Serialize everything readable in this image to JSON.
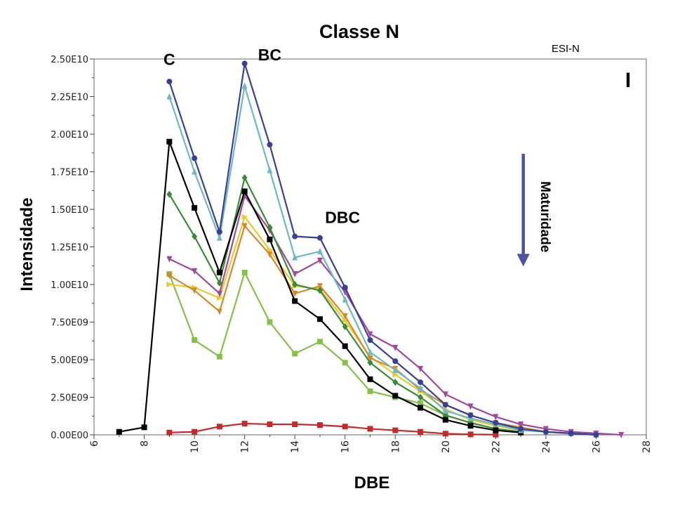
{
  "chart_data": {
    "type": "line",
    "title": "Classe N",
    "subtitle": "ESI-N",
    "panel_label": "I",
    "xlabel": "DBE",
    "ylabel": "Intensidade",
    "xlim": [
      6,
      28
    ],
    "ylim": [
      0,
      25000000000
    ],
    "grid": false,
    "x_ticks": [
      6,
      8,
      10,
      12,
      14,
      16,
      18,
      20,
      22,
      24,
      26,
      28
    ],
    "y_ticks": [
      0,
      2500000000,
      5000000000,
      7500000000,
      10000000000,
      12500000000,
      15000000000,
      17500000000,
      20000000000,
      22500000000,
      25000000000
    ],
    "y_tick_labels": [
      "0.00E00",
      "2.50E09",
      "5.00E09",
      "7.50E09",
      "1.00E10",
      "1.25E10",
      "1.50E10",
      "1.75E10",
      "2.00E10",
      "2.25E10",
      "2.50E10"
    ],
    "annotations": [
      {
        "text": "C",
        "x": 9,
        "y": 24600000000
      },
      {
        "text": "BC",
        "x": 13,
        "y": 24900000000
      },
      {
        "text": "DBC",
        "x": 15.9,
        "y": 14100000000
      },
      {
        "text": "Maturidade",
        "x": 23.8,
        "y": 14500000000
      }
    ],
    "arrow": {
      "label": "Maturidade",
      "direction": "down",
      "x": 23.1,
      "y_from": 18700000000,
      "y_to": 11200000000,
      "color": "#4a55a2"
    },
    "series": [
      {
        "color": "#3a3f93",
        "marker": "circle",
        "x": [
          9,
          10,
          11,
          12,
          13,
          14,
          15,
          16,
          17,
          18,
          19,
          20,
          21,
          22,
          23,
          24,
          25,
          26
        ],
        "y": [
          23500000000,
          18400000000,
          13500000000,
          24700000000,
          19300000000,
          13200000000,
          13100000000,
          9800000000,
          6300000000,
          4900000000,
          3500000000,
          2000000000,
          1300000000,
          800000000,
          400000000,
          200000000,
          100000000,
          0
        ]
      },
      {
        "color": "#6fb7c4",
        "marker": "triangle-up",
        "x": [
          9,
          10,
          11,
          12,
          13,
          14,
          15,
          16,
          17,
          18,
          19,
          20,
          21,
          22,
          23,
          24,
          25,
          26
        ],
        "y": [
          22500000000,
          17500000000,
          13100000000,
          23200000000,
          17600000000,
          11800000000,
          12200000000,
          9000000000,
          5500000000,
          4300000000,
          3100000000,
          1600000000,
          1100000000,
          700000000,
          300000000,
          200000000,
          100000000,
          0
        ]
      },
      {
        "color": "#000000",
        "marker": "square",
        "x": [
          7,
          8,
          9,
          10,
          11,
          12,
          13,
          14,
          15,
          16,
          17,
          18,
          19,
          20,
          21,
          22,
          23
        ],
        "y": [
          200000000,
          500000000,
          19500000000,
          15100000000,
          10800000000,
          16200000000,
          13000000000,
          8900000000,
          7700000000,
          5900000000,
          3700000000,
          2600000000,
          1800000000,
          1000000000,
          600000000,
          300000000,
          150000000
        ]
      },
      {
        "color": "#3a8a3a",
        "marker": "diamond",
        "x": [
          9,
          10,
          11,
          12,
          13,
          14,
          15,
          16,
          17,
          18,
          19,
          20,
          21,
          22,
          23
        ],
        "y": [
          16000000000,
          13200000000,
          10100000000,
          17100000000,
          13800000000,
          10000000000,
          9600000000,
          7200000000,
          4800000000,
          3500000000,
          2500000000,
          1300000000,
          800000000,
          400000000,
          200000000
        ]
      },
      {
        "color": "#a0489a",
        "marker": "triangle-down",
        "x": [
          9,
          10,
          11,
          12,
          13,
          14,
          15,
          16,
          17,
          18,
          19,
          20,
          21,
          22,
          23,
          24,
          25,
          26,
          27
        ],
        "y": [
          11700000000,
          10900000000,
          9400000000,
          15900000000,
          13600000000,
          10700000000,
          11600000000,
          9500000000,
          6700000000,
          5800000000,
          4400000000,
          2700000000,
          1900000000,
          1200000000,
          700000000,
          400000000,
          200000000,
          100000000,
          0
        ]
      },
      {
        "color": "#d4882e",
        "marker": "triangle-down",
        "x": [
          9,
          10,
          11,
          12,
          13,
          14,
          15,
          16,
          17,
          18,
          19,
          20,
          21,
          22,
          23,
          24,
          25
        ],
        "y": [
          10600000000,
          9600000000,
          8200000000,
          13900000000,
          12000000000,
          9400000000,
          9900000000,
          7900000000,
          5100000000,
          4400000000,
          3000000000,
          2000000000,
          1300000000,
          800000000,
          500000000,
          200000000,
          100000000
        ]
      },
      {
        "color": "#e9c930",
        "marker": "triangle-right",
        "x": [
          9,
          10,
          11,
          12,
          13,
          14,
          15,
          16,
          17,
          18,
          19,
          20,
          21,
          22,
          23
        ],
        "y": [
          10000000000,
          9800000000,
          9100000000,
          14500000000,
          12300000000,
          9900000000,
          9700000000,
          7600000000,
          5200000000,
          4000000000,
          2900000000,
          1700000000,
          1000000000,
          600000000,
          300000000
        ]
      },
      {
        "color": "#86bf4a",
        "marker": "square",
        "x": [
          9,
          10,
          11,
          12,
          13,
          14,
          15,
          16,
          17,
          18,
          19,
          20,
          21,
          22,
          23
        ],
        "y": [
          10700000000,
          6300000000,
          5200000000,
          10800000000,
          7500000000,
          5400000000,
          6200000000,
          4800000000,
          2900000000,
          2500000000,
          2100000000,
          1300000000,
          800000000,
          400000000,
          200000000
        ]
      },
      {
        "color": "#c22b2b",
        "marker": "square",
        "x": [
          9,
          10,
          11,
          12,
          13,
          14,
          15,
          16,
          17,
          18,
          19,
          20,
          21,
          22
        ],
        "y": [
          150000000,
          200000000,
          550000000,
          750000000,
          700000000,
          700000000,
          650000000,
          550000000,
          400000000,
          300000000,
          200000000,
          80000000,
          30000000,
          10000000
        ]
      }
    ]
  }
}
